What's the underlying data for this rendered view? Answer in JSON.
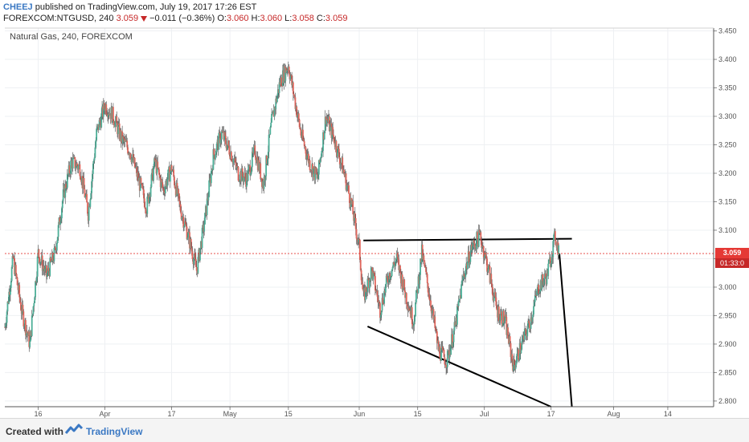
{
  "header": {
    "author": "CHEEJ",
    "published": "published on TradingView.com, July 19, 2017 17:26 EST",
    "symbol": "FOREXCOM:NTGUSD, 240",
    "last": "3.059",
    "change": "−0.011 (−0.36%)",
    "o_label": "O:",
    "o_value": "3.060",
    "h_label": "H:",
    "h_value": "3.060",
    "l_label": "L:",
    "l_value": "3.058",
    "c_label": "C:",
    "c_value": "3.059"
  },
  "chart_data": {
    "type": "candlestick",
    "title": "Natural Gas, 240, FOREXCOM",
    "ylim": [
      2.79,
      3.455
    ],
    "y_ticks": [
      "3.450",
      "3.400",
      "3.350",
      "3.300",
      "3.250",
      "3.200",
      "3.150",
      "3.100",
      "3.050",
      "3.000",
      "2.950",
      "2.900",
      "2.850",
      "2.800"
    ],
    "x_ticks": [
      "16",
      "Apr",
      "17",
      "May",
      "15",
      "Jun",
      "15",
      "Jul",
      "17",
      "Aug",
      "14"
    ],
    "x_range": [
      "2017-03-08",
      "2017-08-25"
    ],
    "x_tick_dates": [
      "2017-03-16",
      "2017-04-01",
      "2017-04-17",
      "2017-05-01",
      "2017-05-15",
      "2017-06-01",
      "2017-06-15",
      "2017-07-01",
      "2017-07-17",
      "2017-08-01",
      "2017-08-14"
    ],
    "last_price": "3.059",
    "countdown": "01:33:0",
    "colors": {
      "up": "#4caf98",
      "down": "#e0655b",
      "wick": "#333333",
      "price_line": "#e53935",
      "trendline": "#000000"
    },
    "close_series": [
      [
        "2017-03-08",
        2.93
      ],
      [
        "2017-03-10",
        3.05
      ],
      [
        "2017-03-12",
        2.96
      ],
      [
        "2017-03-14",
        2.9
      ],
      [
        "2017-03-16",
        3.06
      ],
      [
        "2017-03-18",
        3.02
      ],
      [
        "2017-03-20",
        3.06
      ],
      [
        "2017-03-22",
        3.16
      ],
      [
        "2017-03-24",
        3.22
      ],
      [
        "2017-03-26",
        3.21
      ],
      [
        "2017-03-28",
        3.13
      ],
      [
        "2017-03-30",
        3.27
      ],
      [
        "2017-04-01",
        3.32
      ],
      [
        "2017-04-03",
        3.3
      ],
      [
        "2017-04-05",
        3.26
      ],
      [
        "2017-04-07",
        3.24
      ],
      [
        "2017-04-09",
        3.19
      ],
      [
        "2017-04-11",
        3.14
      ],
      [
        "2017-04-13",
        3.22
      ],
      [
        "2017-04-15",
        3.17
      ],
      [
        "2017-04-17",
        3.21
      ],
      [
        "2017-04-19",
        3.14
      ],
      [
        "2017-04-21",
        3.09
      ],
      [
        "2017-04-23",
        3.03
      ],
      [
        "2017-04-25",
        3.12
      ],
      [
        "2017-04-27",
        3.23
      ],
      [
        "2017-04-29",
        3.27
      ],
      [
        "2017-05-01",
        3.24
      ],
      [
        "2017-05-03",
        3.2
      ],
      [
        "2017-05-05",
        3.19
      ],
      [
        "2017-05-07",
        3.24
      ],
      [
        "2017-05-09",
        3.18
      ],
      [
        "2017-05-11",
        3.29
      ],
      [
        "2017-05-13",
        3.36
      ],
      [
        "2017-05-15",
        3.39
      ],
      [
        "2017-05-16",
        3.35
      ],
      [
        "2017-05-18",
        3.27
      ],
      [
        "2017-05-20",
        3.22
      ],
      [
        "2017-05-22",
        3.19
      ],
      [
        "2017-05-24",
        3.3
      ],
      [
        "2017-05-26",
        3.26
      ],
      [
        "2017-05-28",
        3.21
      ],
      [
        "2017-05-30",
        3.15
      ],
      [
        "2017-06-01",
        3.07
      ],
      [
        "2017-06-02",
        2.98
      ],
      [
        "2017-06-04",
        3.03
      ],
      [
        "2017-06-06",
        2.96
      ],
      [
        "2017-06-08",
        3.02
      ],
      [
        "2017-06-10",
        3.05
      ],
      [
        "2017-06-12",
        2.99
      ],
      [
        "2017-06-14",
        2.94
      ],
      [
        "2017-06-16",
        3.06
      ],
      [
        "2017-06-18",
        2.98
      ],
      [
        "2017-06-20",
        2.89
      ],
      [
        "2017-06-22",
        2.87
      ],
      [
        "2017-06-24",
        2.93
      ],
      [
        "2017-06-26",
        3.02
      ],
      [
        "2017-06-28",
        3.07
      ],
      [
        "2017-06-30",
        3.09
      ],
      [
        "2017-07-02",
        3.03
      ],
      [
        "2017-07-04",
        2.96
      ],
      [
        "2017-07-06",
        2.94
      ],
      [
        "2017-07-08",
        2.86
      ],
      [
        "2017-07-10",
        2.9
      ],
      [
        "2017-07-12",
        2.94
      ],
      [
        "2017-07-14",
        3.0
      ],
      [
        "2017-07-16",
        3.02
      ],
      [
        "2017-07-18",
        3.09
      ],
      [
        "2017-07-19",
        3.059
      ]
    ],
    "trendlines": [
      {
        "from": [
          "2017-06-02",
          3.082
        ],
        "to": [
          "2017-07-22",
          3.085
        ]
      },
      {
        "from": [
          "2017-06-03",
          2.931
        ],
        "to": [
          "2017-07-17",
          2.79
        ]
      },
      {
        "from": [
          "2017-07-19",
          3.059
        ],
        "to": [
          "2017-07-22",
          2.79
        ]
      }
    ]
  },
  "footer": {
    "created_with": "Created with",
    "brand": "TradingView"
  }
}
